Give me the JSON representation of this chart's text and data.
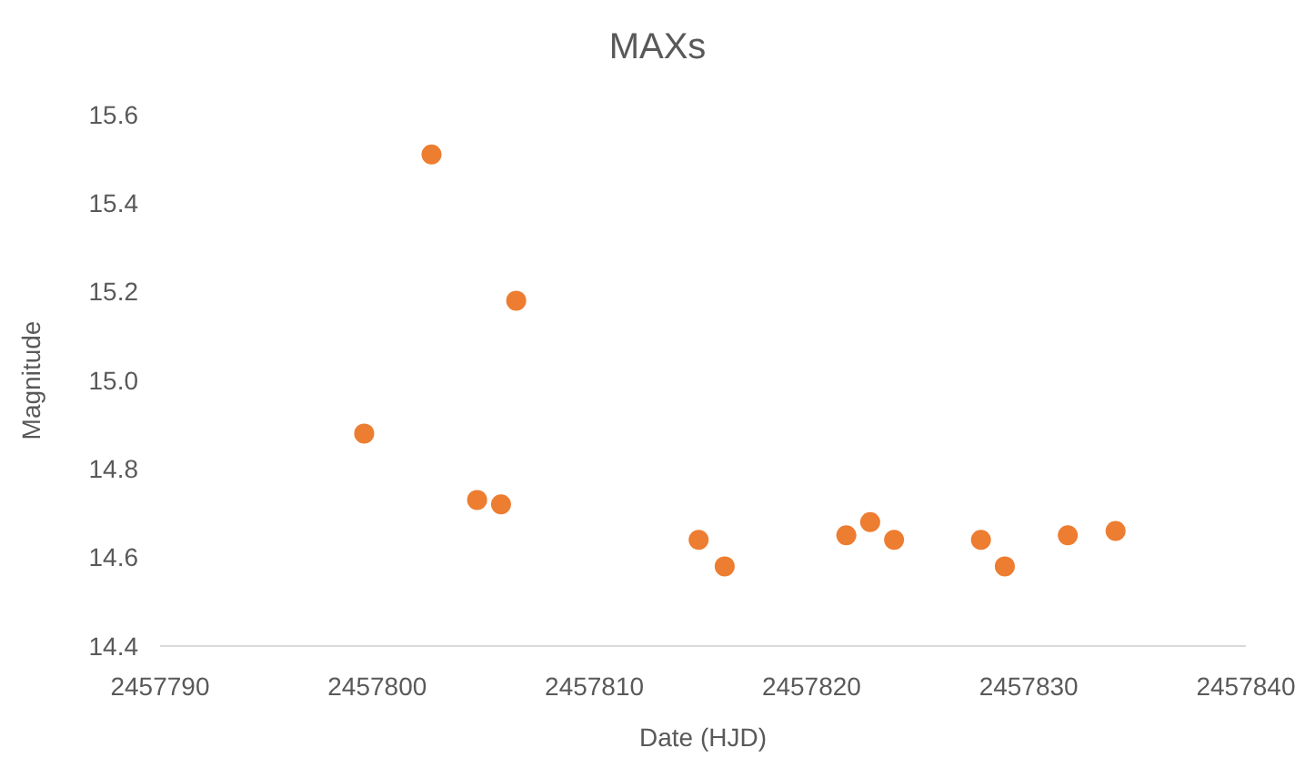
{
  "chart_data": {
    "type": "scatter",
    "title": "MAXs",
    "xlabel": "Date (HJD)",
    "ylabel": "Magnitude",
    "x": [
      2457799.4,
      2457802.5,
      2457804.6,
      2457805.7,
      2457806.4,
      2457814.8,
      2457816.0,
      2457821.6,
      2457822.7,
      2457823.8,
      2457827.8,
      2457828.9,
      2457831.8,
      2457834.0
    ],
    "series": [
      {
        "color": "#ed7d31",
        "values": [
          14.88,
          15.51,
          14.73,
          14.72,
          15.18,
          14.64,
          14.58,
          14.65,
          14.68,
          14.64,
          14.64,
          14.58,
          14.65,
          14.66
        ]
      }
    ],
    "xlim": [
      2457790,
      2457840
    ],
    "xticks": [
      2457790,
      2457800,
      2457810,
      2457820,
      2457830,
      2457840
    ],
    "ylim": [
      14.4,
      15.6
    ],
    "yticks": [
      {
        "value": 14.4,
        "label": "14.4"
      },
      {
        "value": 14.6,
        "label": "14.6"
      },
      {
        "value": 14.8,
        "label": "14.8"
      },
      {
        "value": 15.0,
        "label": "15.0"
      },
      {
        "value": 15.2,
        "label": "15.2"
      },
      {
        "value": 15.4,
        "label": "15.4"
      },
      {
        "value": 15.6,
        "label": "15.6"
      }
    ],
    "marker": "circle",
    "grid": false
  }
}
